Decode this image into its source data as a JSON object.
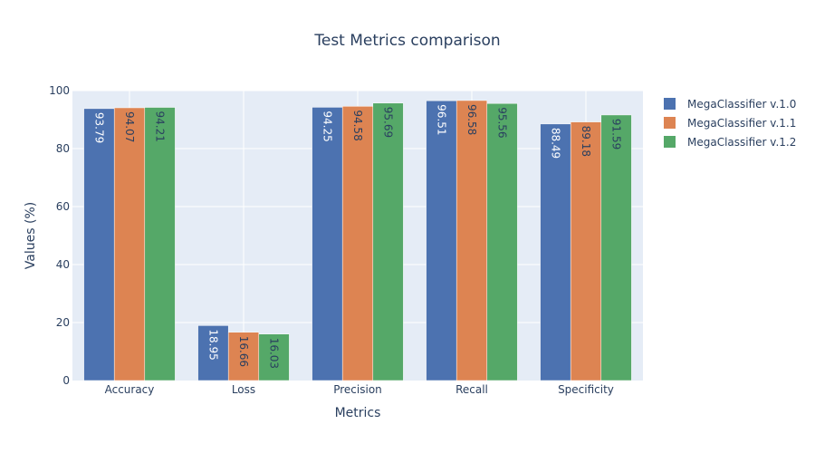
{
  "chart_data": {
    "type": "bar",
    "title": "Test Metrics comparison",
    "xlabel": "Metrics",
    "ylabel": "Values (%)",
    "ylim": [
      0,
      100
    ],
    "yticks": [
      0,
      20,
      40,
      60,
      80,
      100
    ],
    "grid": true,
    "legend_position": "top-right",
    "categories": [
      "Accuracy",
      "Loss",
      "Precision",
      "Recall",
      "Specificity"
    ],
    "series": [
      {
        "name": "MegaClassifier v.1.0",
        "color": "#4c72b0",
        "label_color": "#ffffff",
        "values": [
          93.79,
          18.95,
          94.25,
          96.51,
          88.49
        ],
        "labels": [
          "93.79",
          "18.95",
          "94.25",
          "96.51",
          "88.49"
        ]
      },
      {
        "name": "MegaClassifier v.1.1",
        "color": "#dd8452",
        "label_color": "#2a3f5f",
        "values": [
          94.07,
          16.66,
          94.58,
          96.58,
          89.18
        ],
        "labels": [
          "94.07",
          "16.66",
          "94.58",
          "96.58",
          "89.18"
        ]
      },
      {
        "name": "MegaClassifier v.1.2",
        "color": "#55a868",
        "label_color": "#2a3f5f",
        "values": [
          94.21,
          16.03,
          95.69,
          95.56,
          91.59
        ],
        "labels": [
          "94.21",
          "16.03",
          "95.69",
          "95.56",
          "91.59"
        ]
      }
    ]
  }
}
